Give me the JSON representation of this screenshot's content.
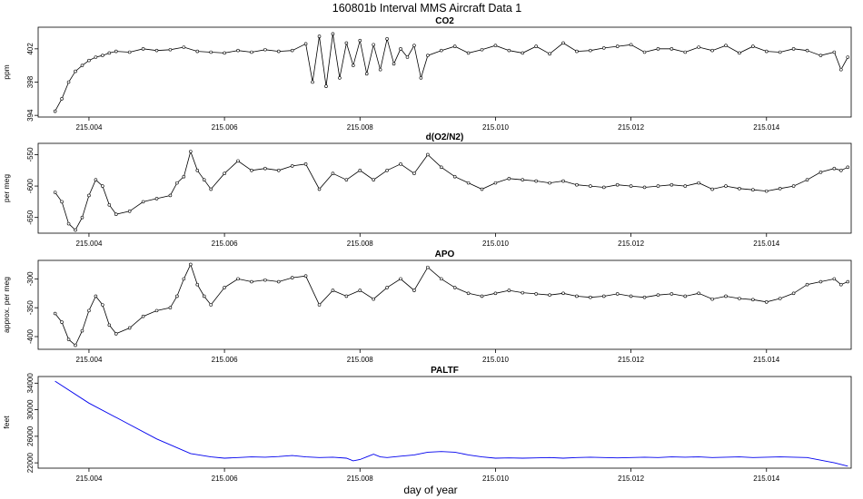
{
  "title": "160801b   Interval MMS Aircraft Data 1",
  "xlabel": "day of year",
  "x_ticks": [
    "215.004",
    "215.006",
    "215.008",
    "215.010",
    "215.012",
    "215.014"
  ],
  "x_tick_values": [
    215.004,
    215.006,
    215.008,
    215.01,
    215.012,
    215.014
  ],
  "xlim": [
    215.00325,
    215.01525
  ],
  "chart_data": [
    {
      "type": "line",
      "title": "CO2",
      "ylabel": "ppm",
      "ylim": [
        393.8,
        404.6
      ],
      "y_ticks": [
        "394",
        "398",
        "402"
      ],
      "y_tick_values": [
        394,
        398,
        402
      ],
      "color": "#000000",
      "markers": true,
      "x": [
        215.0035,
        215.0036,
        215.0037,
        215.0038,
        215.0039,
        215.004,
        215.0041,
        215.0042,
        215.0043,
        215.0044,
        215.0046,
        215.0048,
        215.005,
        215.0052,
        215.0054,
        215.0056,
        215.0058,
        215.006,
        215.0062,
        215.0064,
        215.0066,
        215.0068,
        215.007,
        215.0072,
        215.0073,
        215.0074,
        215.0075,
        215.0076,
        215.0077,
        215.0078,
        215.0079,
        215.008,
        215.0081,
        215.0082,
        215.0083,
        215.0084,
        215.0085,
        215.0086,
        215.0087,
        215.0088,
        215.0089,
        215.009,
        215.0092,
        215.0094,
        215.0096,
        215.0098,
        215.01,
        215.0102,
        215.0104,
        215.0106,
        215.0108,
        215.011,
        215.0112,
        215.0114,
        215.0116,
        215.0118,
        215.012,
        215.0122,
        215.0124,
        215.0126,
        215.0128,
        215.013,
        215.0132,
        215.0134,
        215.0136,
        215.0138,
        215.014,
        215.0142,
        215.0144,
        215.0146,
        215.0148,
        215.015,
        215.0151,
        215.0152
      ],
      "y": [
        394.5,
        396,
        398,
        399.3,
        400,
        400.6,
        401,
        401.2,
        401.5,
        401.7,
        401.6,
        402,
        401.8,
        401.9,
        402.2,
        401.7,
        401.6,
        401.5,
        401.8,
        401.6,
        401.9,
        401.7,
        401.8,
        402.6,
        398,
        403.5,
        397.5,
        403.8,
        398.5,
        402.7,
        400,
        403,
        399,
        402.5,
        399.5,
        403.2,
        400.2,
        402,
        401,
        402.4,
        398.5,
        401.2,
        401.8,
        402.3,
        401.5,
        401.9,
        402.4,
        401.8,
        401.5,
        402.3,
        401.4,
        402.7,
        401.7,
        401.8,
        402.1,
        402.3,
        402.5,
        401.6,
        402,
        402,
        401.6,
        402.2,
        401.8,
        402.4,
        401.5,
        402.3,
        401.7,
        401.6,
        402,
        401.8,
        401.2,
        401.6,
        399.5,
        401
      ]
    },
    {
      "type": "line",
      "title": "d(O2/N2)",
      "ylabel": "per meg",
      "ylim": [
        -675,
        -532
      ],
      "y_ticks": [
        "-650",
        "-600",
        "-550"
      ],
      "y_tick_values": [
        -650,
        -600,
        -550
      ],
      "color": "#000000",
      "markers": true,
      "x": [
        215.0035,
        215.0036,
        215.0037,
        215.0038,
        215.0039,
        215.004,
        215.0041,
        215.0042,
        215.0043,
        215.0044,
        215.0046,
        215.0048,
        215.005,
        215.0052,
        215.0053,
        215.0054,
        215.0055,
        215.0056,
        215.0057,
        215.0058,
        215.006,
        215.0062,
        215.0064,
        215.0066,
        215.0068,
        215.007,
        215.0072,
        215.0074,
        215.0076,
        215.0078,
        215.008,
        215.0082,
        215.0084,
        215.0086,
        215.0088,
        215.009,
        215.0092,
        215.0094,
        215.0096,
        215.0098,
        215.01,
        215.0102,
        215.0104,
        215.0106,
        215.0108,
        215.011,
        215.0112,
        215.0114,
        215.0116,
        215.0118,
        215.012,
        215.0122,
        215.0124,
        215.0126,
        215.0128,
        215.013,
        215.0132,
        215.0134,
        215.0136,
        215.0138,
        215.014,
        215.0142,
        215.0144,
        215.0146,
        215.0148,
        215.015,
        215.0151,
        215.0152
      ],
      "y": [
        -610,
        -625,
        -660,
        -670,
        -650,
        -615,
        -590,
        -600,
        -630,
        -645,
        -640,
        -625,
        -620,
        -615,
        -595,
        -585,
        -545,
        -575,
        -590,
        -605,
        -580,
        -560,
        -575,
        -572,
        -575,
        -568,
        -565,
        -605,
        -580,
        -590,
        -575,
        -590,
        -575,
        -565,
        -580,
        -550,
        -570,
        -585,
        -595,
        -605,
        -595,
        -588,
        -590,
        -592,
        -595,
        -592,
        -598,
        -600,
        -602,
        -598,
        -600,
        -602,
        -600,
        -598,
        -600,
        -595,
        -605,
        -600,
        -604,
        -606,
        -608,
        -604,
        -600,
        -590,
        -578,
        -572,
        -575,
        -570
      ]
    },
    {
      "type": "line",
      "title": "APO",
      "ylabel": "approx. per meg",
      "ylim": [
        -422,
        -268
      ],
      "y_ticks": [
        "-400",
        "-350",
        "-300"
      ],
      "y_tick_values": [
        -400,
        -350,
        -300
      ],
      "color": "#000000",
      "markers": true,
      "x": [
        215.0035,
        215.0036,
        215.0037,
        215.0038,
        215.0039,
        215.004,
        215.0041,
        215.0042,
        215.0043,
        215.0044,
        215.0046,
        215.0048,
        215.005,
        215.0052,
        215.0053,
        215.0054,
        215.0055,
        215.0056,
        215.0057,
        215.0058,
        215.006,
        215.0062,
        215.0064,
        215.0066,
        215.0068,
        215.007,
        215.0072,
        215.0074,
        215.0076,
        215.0078,
        215.008,
        215.0082,
        215.0084,
        215.0086,
        215.0088,
        215.009,
        215.0092,
        215.0094,
        215.0096,
        215.0098,
        215.01,
        215.0102,
        215.0104,
        215.0106,
        215.0108,
        215.011,
        215.0112,
        215.0114,
        215.0116,
        215.0118,
        215.012,
        215.0122,
        215.0124,
        215.0126,
        215.0128,
        215.013,
        215.0132,
        215.0134,
        215.0136,
        215.0138,
        215.014,
        215.0142,
        215.0144,
        215.0146,
        215.0148,
        215.015,
        215.0151,
        215.0152
      ],
      "y": [
        -360,
        -375,
        -405,
        -415,
        -390,
        -355,
        -330,
        -345,
        -380,
        -395,
        -385,
        -365,
        -355,
        -350,
        -330,
        -300,
        -275,
        -310,
        -330,
        -345,
        -315,
        -300,
        -305,
        -302,
        -305,
        -298,
        -295,
        -345,
        -320,
        -330,
        -320,
        -335,
        -315,
        -300,
        -320,
        -280,
        -300,
        -315,
        -325,
        -330,
        -325,
        -320,
        -324,
        -326,
        -328,
        -325,
        -330,
        -332,
        -330,
        -326,
        -330,
        -332,
        -328,
        -326,
        -330,
        -325,
        -335,
        -330,
        -334,
        -336,
        -340,
        -334,
        -325,
        -310,
        -305,
        -300,
        -310,
        -305
      ]
    },
    {
      "type": "line",
      "title": "PALTF",
      "ylabel": "feet",
      "ylim": [
        21200,
        35000
      ],
      "y_ticks": [
        "22000",
        "26000",
        "30000",
        "34000"
      ],
      "y_tick_values": [
        22000,
        26000,
        30000,
        34000
      ],
      "color": "#0000ee",
      "markers": false,
      "x": [
        215.0035,
        215.004,
        215.0045,
        215.005,
        215.0055,
        215.0058,
        215.006,
        215.0062,
        215.0064,
        215.0066,
        215.0068,
        215.007,
        215.0072,
        215.0074,
        215.0076,
        215.0078,
        215.0079,
        215.008,
        215.0081,
        215.0082,
        215.0083,
        215.0084,
        215.0086,
        215.0088,
        215.009,
        215.0092,
        215.0094,
        215.0096,
        215.0098,
        215.01,
        215.0102,
        215.0104,
        215.0106,
        215.0108,
        215.011,
        215.0112,
        215.0114,
        215.0116,
        215.0118,
        215.012,
        215.0122,
        215.0124,
        215.0126,
        215.0128,
        215.013,
        215.0132,
        215.0134,
        215.0136,
        215.0138,
        215.014,
        215.0142,
        215.0144,
        215.0146,
        215.0148,
        215.015,
        215.0152
      ],
      "y": [
        34300,
        31000,
        28300,
        25600,
        23400,
        22900,
        22700,
        22800,
        22900,
        22850,
        22950,
        23100,
        22900,
        22800,
        22850,
        22700,
        22300,
        22500,
        22900,
        23300,
        22900,
        22800,
        23000,
        23200,
        23600,
        23700,
        23600,
        23200,
        22900,
        22700,
        22750,
        22700,
        22750,
        22800,
        22700,
        22800,
        22850,
        22800,
        22750,
        22800,
        22850,
        22800,
        22900,
        22850,
        22900,
        22800,
        22850,
        22900,
        22800,
        22850,
        22900,
        22850,
        22800,
        22400,
        22000,
        21500
      ]
    }
  ]
}
